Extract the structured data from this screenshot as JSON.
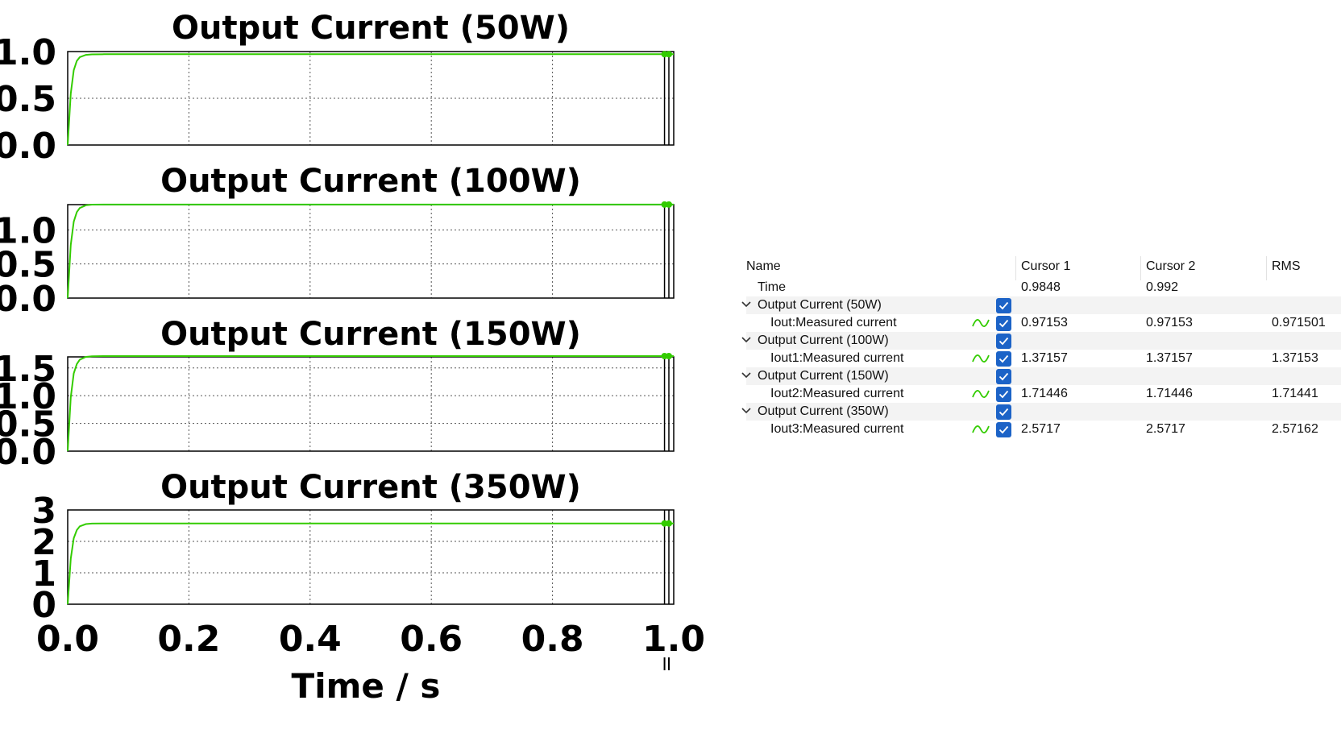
{
  "chart_data": [
    {
      "type": "line",
      "title": "Output Current (50W)",
      "xlabel": "",
      "ylabel": "",
      "xlim": [
        0,
        1.0
      ],
      "ylim": [
        0,
        1.0
      ],
      "yticks": [
        "0.0",
        "0.5",
        "1.0"
      ],
      "grid": true,
      "series": [
        {
          "name": "Iout:Measured current",
          "color": "#33cc00",
          "x": [
            0,
            0.005,
            0.01,
            0.015,
            0.02,
            0.03,
            0.04,
            0.06,
            1.0
          ],
          "y": [
            0,
            0.55,
            0.8,
            0.9,
            0.94,
            0.965,
            0.97,
            0.9715,
            0.9715
          ]
        }
      ]
    },
    {
      "type": "line",
      "title": "Output Current (100W)",
      "xlabel": "",
      "ylabel": "",
      "xlim": [
        0,
        1.0
      ],
      "ylim": [
        0,
        1.37
      ],
      "yticks": [
        "0.0",
        "0.5",
        "1.0"
      ],
      "grid": true,
      "series": [
        {
          "name": "Iout1:Measured current",
          "color": "#33cc00",
          "x": [
            0,
            0.005,
            0.01,
            0.015,
            0.02,
            0.03,
            0.04,
            0.06,
            1.0
          ],
          "y": [
            0,
            0.78,
            1.12,
            1.26,
            1.32,
            1.36,
            1.37,
            1.3716,
            1.3716
          ]
        }
      ]
    },
    {
      "type": "line",
      "title": "Output Current (150W)",
      "xlabel": "",
      "ylabel": "",
      "xlim": [
        0,
        1.0
      ],
      "ylim": [
        0,
        1.7
      ],
      "yticks": [
        "0.0",
        "0.5",
        "1.0",
        "1.5"
      ],
      "grid": true,
      "series": [
        {
          "name": "Iout2:Measured current",
          "color": "#33cc00",
          "x": [
            0,
            0.005,
            0.01,
            0.015,
            0.02,
            0.03,
            0.04,
            0.06,
            1.0
          ],
          "y": [
            0,
            0.97,
            1.4,
            1.57,
            1.65,
            1.7,
            1.712,
            1.7145,
            1.7145
          ]
        }
      ]
    },
    {
      "type": "line",
      "title": "Output Current (350W)",
      "xlabel": "Time / s",
      "ylabel": "",
      "xlim": [
        0,
        1.0
      ],
      "ylim": [
        0,
        3
      ],
      "yticks": [
        "0",
        "1",
        "2",
        "3"
      ],
      "xticks": [
        "0.0",
        "0.2",
        "0.4",
        "0.6",
        "0.8",
        "1.0"
      ],
      "grid": true,
      "series": [
        {
          "name": "Iout3:Measured current",
          "color": "#33cc00",
          "x": [
            0,
            0.005,
            0.01,
            0.015,
            0.02,
            0.03,
            0.04,
            0.06,
            1.0
          ],
          "y": [
            0,
            1.45,
            2.1,
            2.36,
            2.48,
            2.55,
            2.567,
            2.5717,
            2.5717
          ]
        }
      ]
    }
  ],
  "cursors": {
    "cursor1_x": 0.9848,
    "cursor2_x": 0.992
  },
  "table": {
    "headers": {
      "name": "Name",
      "cursor1": "Cursor 1",
      "cursor2": "Cursor 2",
      "rms": "RMS"
    },
    "time_row": {
      "label": "Time",
      "cursor1": "0.9848",
      "cursor2": "0.992"
    },
    "groups": [
      {
        "label": "Output Current (50W)",
        "signal": "Iout:Measured current",
        "cursor1": "0.97153",
        "cursor2": "0.97153",
        "rms": "0.971501"
      },
      {
        "label": "Output Current (100W)",
        "signal": "Iout1:Measured current",
        "cursor1": "1.37157",
        "cursor2": "1.37157",
        "rms": "1.37153"
      },
      {
        "label": "Output Current (150W)",
        "signal": "Iout2:Measured current",
        "cursor1": "1.71446",
        "cursor2": "1.71446",
        "rms": "1.71441"
      },
      {
        "label": "Output Current (350W)",
        "signal": "Iout3:Measured current",
        "cursor1": "2.5717",
        "cursor2": "2.5717",
        "rms": "2.57162"
      }
    ]
  },
  "colors": {
    "trace": "#33cc00",
    "checkbox": "#1c63c7",
    "wave_icon": "#33cc00"
  },
  "icons": {
    "expand": "chevron-down-icon",
    "wave": "waveform-icon",
    "check": "checkbox-checked-icon"
  }
}
